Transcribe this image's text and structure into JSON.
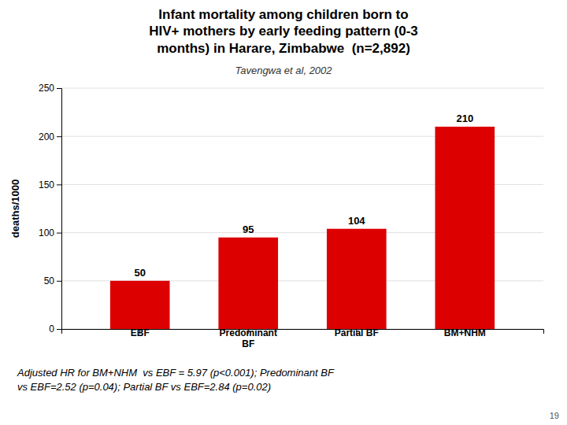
{
  "chart_data": {
    "type": "bar",
    "title": "Infant mortality among children born to\nHIV+ mothers by early feeding pattern (0-3\nmonths) in Harare, Zimbabwe  (n=2,892)",
    "subtitle": "Tavengwa et al, 2002",
    "ylabel": "deaths/1000",
    "categories": [
      "EBF",
      "Predominant\nBF",
      "Partial BF",
      "BM+NHM"
    ],
    "values": [
      50,
      95,
      104,
      210
    ],
    "color": "#dd0000",
    "ylim": [
      0,
      250
    ],
    "yticks": [
      0,
      50,
      100,
      150,
      200,
      250
    ],
    "grid": true,
    "data_labels": true,
    "annotations": [
      "Adjusted HR for BM+NHM  vs EBF = 5.97 (p<0.001); Predominant BF\nvs EBF=2.52 (p=0.04); Partial BF vs EBF=2.84 (p=0.02)",
      "19"
    ]
  }
}
